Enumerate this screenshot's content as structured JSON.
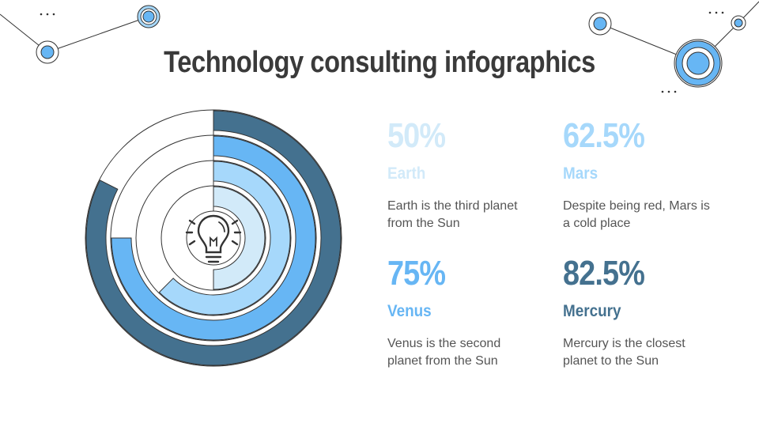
{
  "title": "Technology consulting infographics",
  "colors": {
    "c1": "#d2eaf9",
    "c2": "#a6d8fb",
    "c3": "#67b6f4",
    "c4": "#44718f",
    "line": "#333333",
    "text": "#555555"
  },
  "icons": {
    "center": "lightbulb-icon",
    "decoration": "network-node-icon"
  },
  "stats": [
    {
      "value": "50%",
      "name": "Earth",
      "desc": "Earth is the third planet from the Sun",
      "color": "#d2eaf9"
    },
    {
      "value": "62.5%",
      "name": "Mars",
      "desc": "Despite being red, Mars is a cold place",
      "color": "#a6d8fb"
    },
    {
      "value": "75%",
      "name": "Venus",
      "desc": "Venus is the second planet from the Sun",
      "color": "#67b6f4"
    },
    {
      "value": "82.5%",
      "name": "Mercury",
      "desc": "Mercury is the closest planet to the Sun",
      "color": "#44718f"
    }
  ],
  "chart_data": {
    "type": "radial-bar",
    "categories": [
      "Earth",
      "Mars",
      "Venus",
      "Mercury"
    ],
    "values": [
      50,
      62.5,
      75,
      82.5
    ],
    "unit": "%",
    "ylim": [
      0,
      100
    ]
  }
}
